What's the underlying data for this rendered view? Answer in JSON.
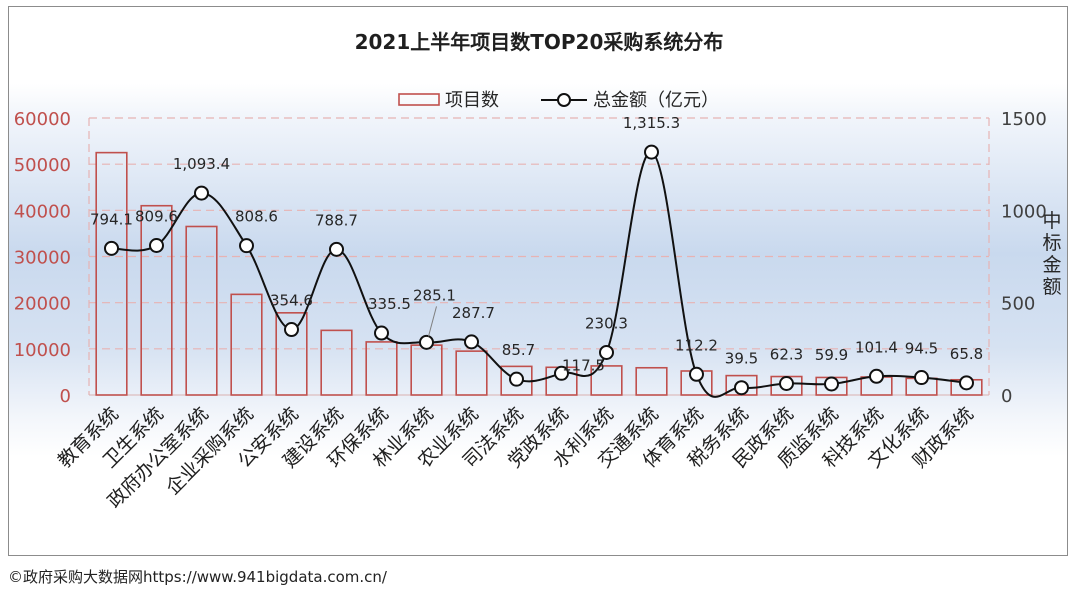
{
  "chart_data": {
    "type": "bar-line",
    "title": "2021上半年项目数TOP20采购系统分布",
    "categories": [
      "教育系统",
      "卫生系统",
      "政府办公室系统",
      "企业采购系统",
      "公安系统",
      "建设系统",
      "环保系统",
      "林业系统",
      "农业系统",
      "司法系统",
      "党政系统",
      "水利系统",
      "交通系统",
      "体育系统",
      "税务系统",
      "民政系统",
      "质监系统",
      "科技系统",
      "文化系统",
      "财政系统"
    ],
    "series": [
      {
        "name": "项目数",
        "type": "bar",
        "axis": "left",
        "values": [
          52500,
          41000,
          36500,
          21800,
          17800,
          14000,
          11500,
          10800,
          9500,
          6200,
          6000,
          6300,
          5900,
          5200,
          4200,
          4000,
          3800,
          3900,
          3600,
          3300
        ]
      },
      {
        "name": "总金额（亿元）",
        "type": "line",
        "axis": "right",
        "values": [
          794.1,
          809.6,
          1093.4,
          808.6,
          354.6,
          788.7,
          335.5,
          285.1,
          287.7,
          85.7,
          117.5,
          230.3,
          1315.3,
          112.2,
          39.5,
          62.3,
          59.9,
          101.4,
          94.5,
          65.8
        ],
        "labels": [
          "794.1",
          "809.6",
          "1,093.4",
          "808.6",
          "354.6",
          "788.7",
          "335.5",
          "285.1",
          "287.7",
          "85.7",
          "117.5",
          "230.3",
          "1,315.3",
          "112.2",
          "39.5",
          "62.3",
          "59.9",
          "101.4",
          "94.5",
          "65.8"
        ]
      }
    ],
    "y_left": {
      "ylim": [
        0,
        60000
      ],
      "ticks": [
        "0",
        "10000",
        "20000",
        "30000",
        "40000",
        "50000",
        "60000"
      ],
      "color": "#c0504d"
    },
    "y_right": {
      "ylim": [
        0,
        1500
      ],
      "ticks": [
        "0",
        "500",
        "1000",
        "1500"
      ],
      "label": "中标金额"
    },
    "legend": {
      "position": "top-center",
      "items": [
        "项目数",
        "总金额（亿元）"
      ]
    },
    "grid": true
  },
  "footer": "©政府采购大数据网https://www.941bigdata.com.cn/"
}
